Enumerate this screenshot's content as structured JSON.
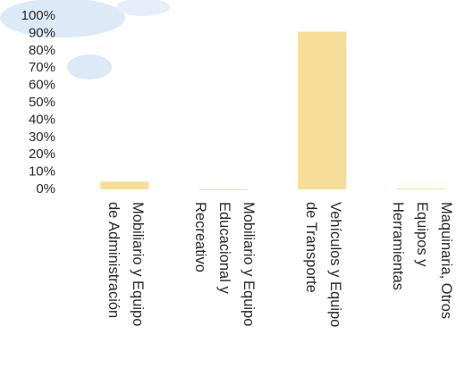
{
  "chart_data": {
    "type": "bar",
    "categories": [
      "Mobiliario y Equipo\nde Administración",
      "Mobiliario y Equipo\nEducacional y\nRecreativo",
      "Vehículos y Equipo\nde Transporte",
      "Maquinaria, Otros\nEquipos y\nHerramientas"
    ],
    "values": [
      4.5,
      0,
      91,
      0.5
    ],
    "color": "#f6de98",
    "ylim": [
      0,
      100
    ],
    "yticks": [
      {
        "value": 0,
        "label": "0%"
      },
      {
        "value": 10,
        "label": "10%"
      },
      {
        "value": 20,
        "label": "20%"
      },
      {
        "value": 30,
        "label": "30%"
      },
      {
        "value": 40,
        "label": "40%"
      },
      {
        "value": 50,
        "label": "50%"
      },
      {
        "value": 60,
        "label": "60%"
      },
      {
        "value": 70,
        "label": "70%"
      },
      {
        "value": 80,
        "label": "80%"
      },
      {
        "value": 90,
        "label": "90%"
      },
      {
        "value": 100,
        "label": "100%"
      }
    ],
    "grid": false
  }
}
